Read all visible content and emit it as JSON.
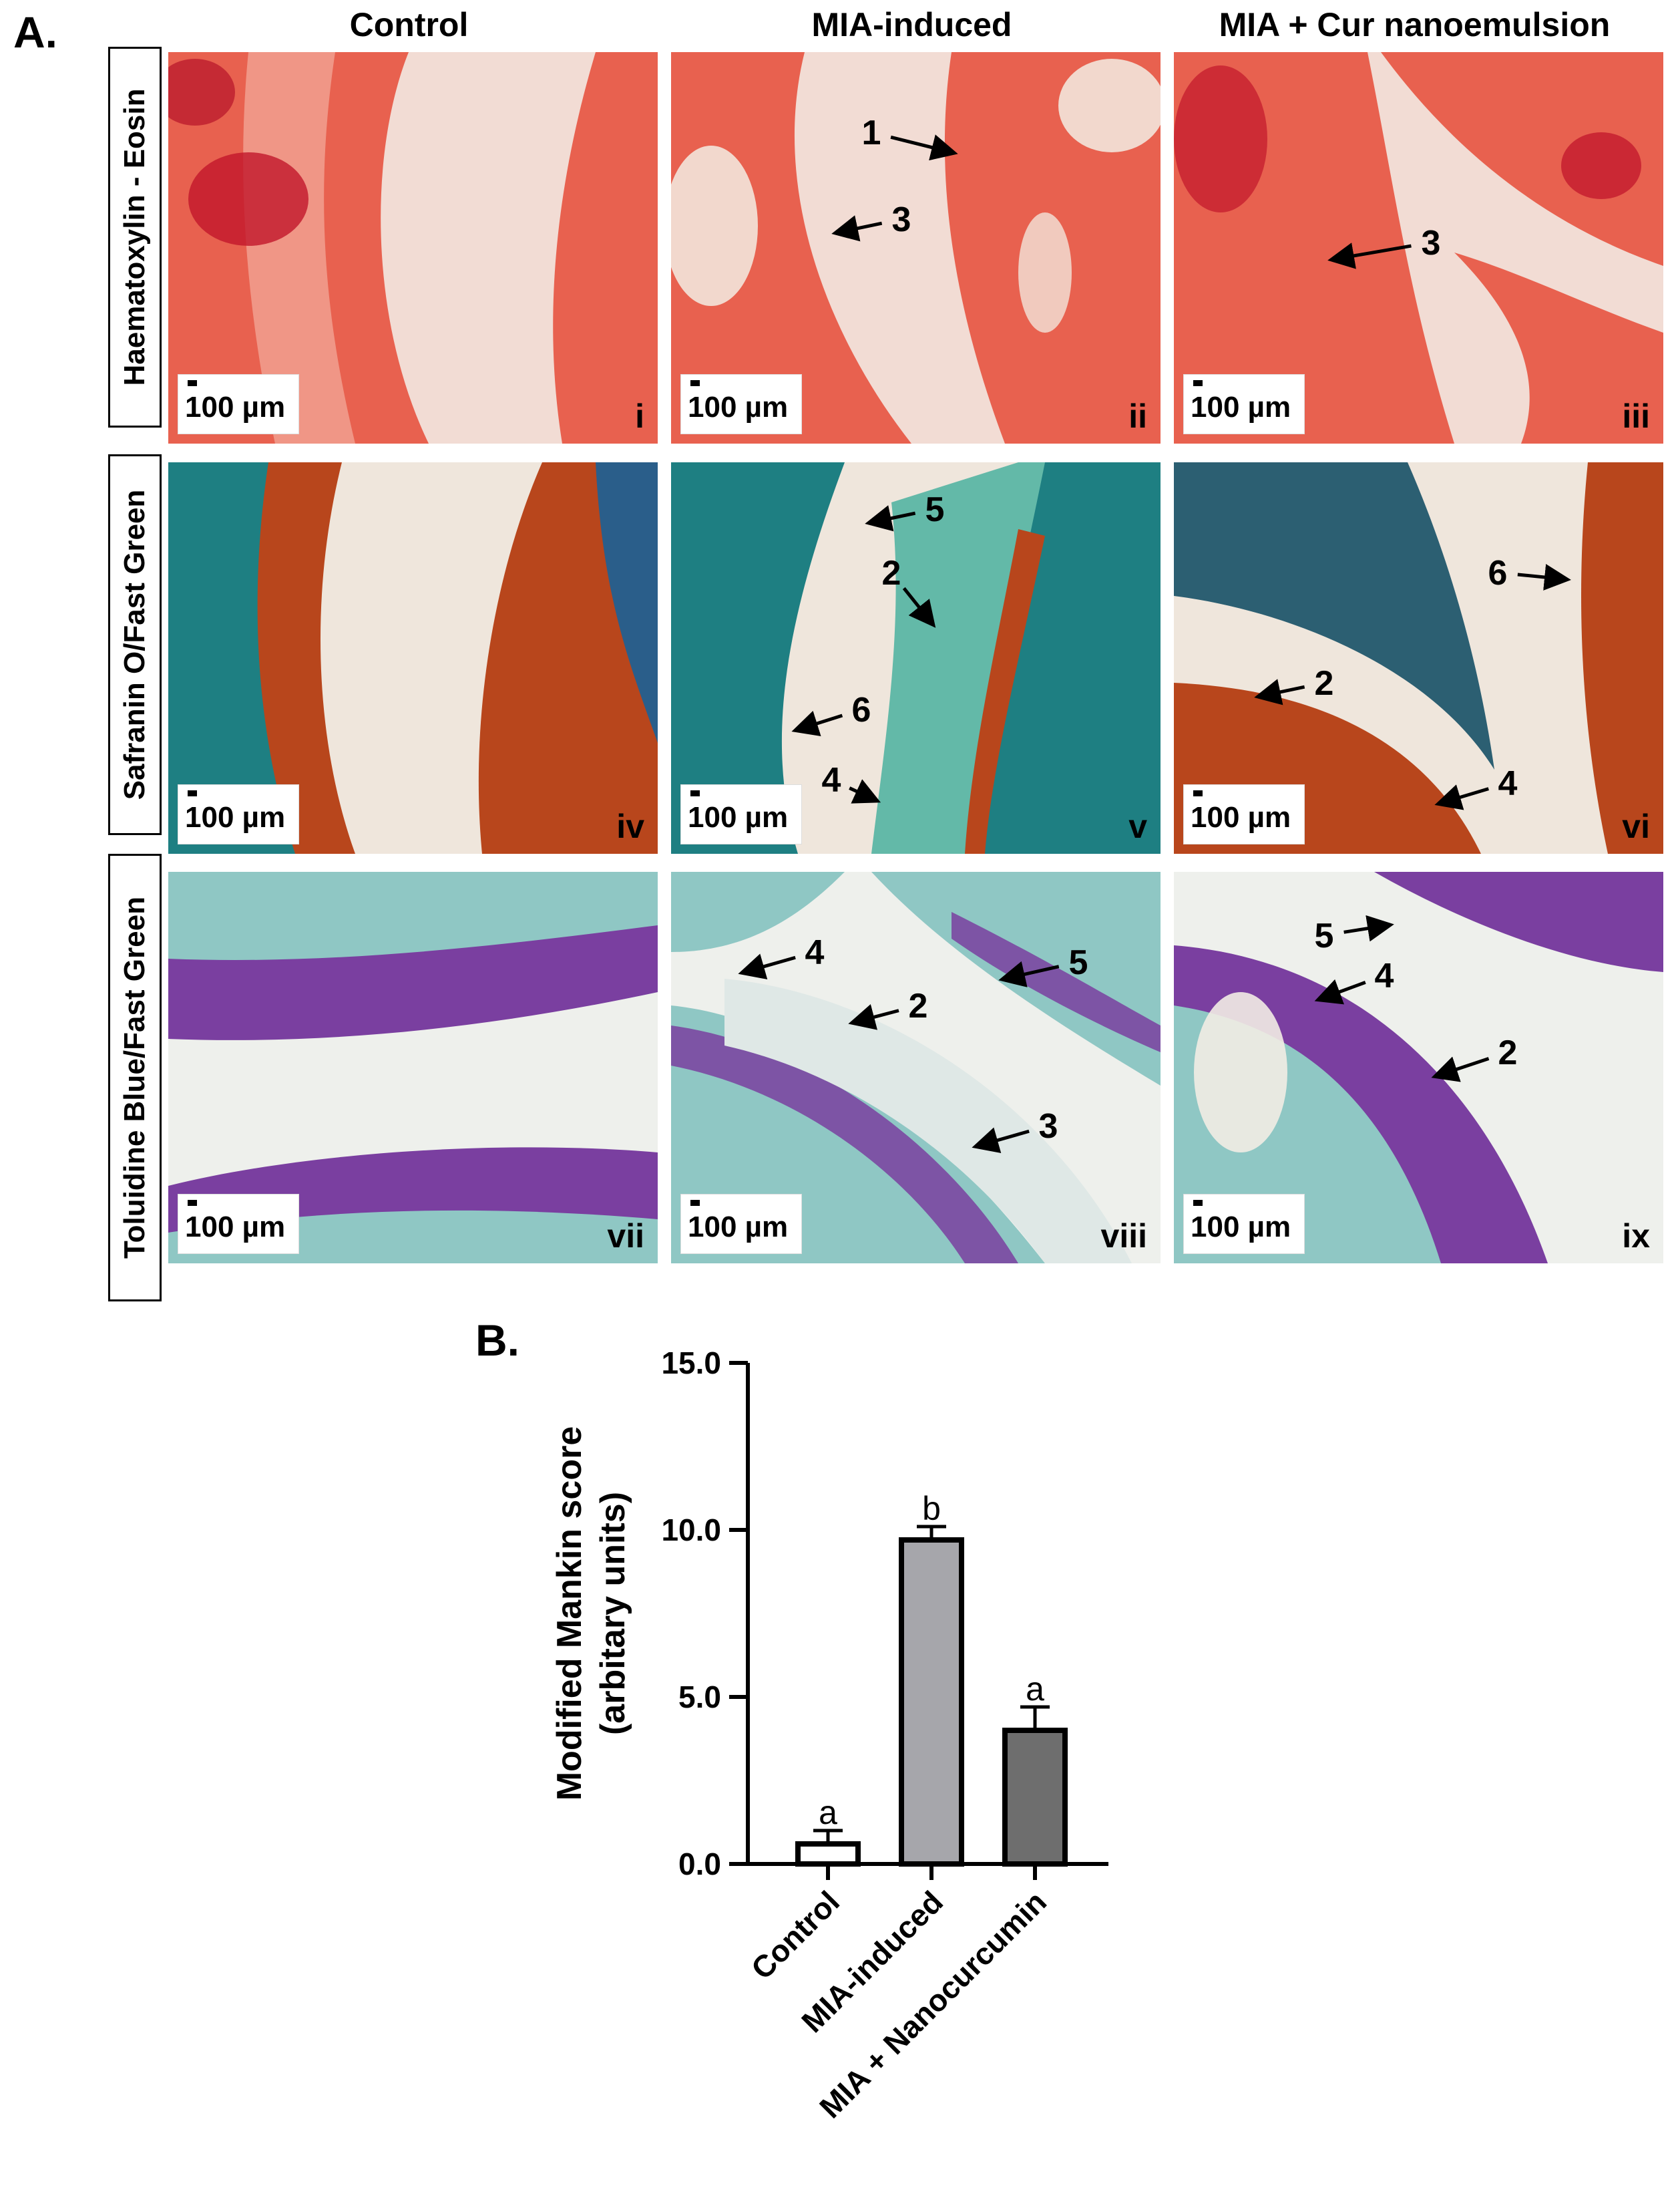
{
  "panel_a": {
    "letter": "A.",
    "columns": [
      "Control",
      "MIA-induced",
      "MIA + Cur nanoemulsion"
    ],
    "rows": [
      "Haematoxylin - Eosin",
      "Safranin O/Fast Green",
      "Toluidine Blue/Fast Green"
    ],
    "scale_label": "100 µm",
    "tiles": [
      {
        "id": "i",
        "stain": "he",
        "annotations": []
      },
      {
        "id": "ii",
        "stain": "he",
        "annotations": [
          "1",
          "3"
        ]
      },
      {
        "id": "iii",
        "stain": "he",
        "annotations": [
          "3"
        ]
      },
      {
        "id": "iv",
        "stain": "saf",
        "annotations": []
      },
      {
        "id": "v",
        "stain": "saf",
        "annotations": [
          "5",
          "2",
          "6",
          "4"
        ]
      },
      {
        "id": "vi",
        "stain": "saf",
        "annotations": [
          "6",
          "2",
          "4"
        ]
      },
      {
        "id": "vii",
        "stain": "tb",
        "annotations": []
      },
      {
        "id": "viii",
        "stain": "tb",
        "annotations": [
          "4",
          "5",
          "2",
          "3"
        ]
      },
      {
        "id": "ix",
        "stain": "tb",
        "annotations": [
          "5",
          "4",
          "2"
        ]
      }
    ],
    "stain_colors": {
      "he": {
        "bg": "#f2dcd4",
        "tissue": "#e8614f",
        "light": "#f6c3b5"
      },
      "saf": {
        "bg": "#efe6dc",
        "tissue": "#1e7f82",
        "accent": "#b8461c"
      },
      "tb": {
        "bg": "#eef0ec",
        "tissue": "#8fc7c4",
        "accent": "#7a3fa0"
      }
    }
  },
  "panel_b": {
    "letter": "B."
  },
  "chart_data": {
    "type": "bar",
    "categories": [
      "Control",
      "MIA-induced",
      "MIA + Nanocurcumin"
    ],
    "values": [
      0.6,
      9.7,
      4.0
    ],
    "errors": [
      0.4,
      0.4,
      0.7
    ],
    "significance": [
      "a",
      "b",
      "a"
    ],
    "bar_colors": [
      "#ffffff",
      "#a6a6ab",
      "#6e6e6e"
    ],
    "ylabel_line1": "Modified Mankin score",
    "ylabel_line2": "(arbitary units)",
    "yticks": [
      "0.0",
      "5.0",
      "10.0",
      "15.0"
    ],
    "ylim": [
      0,
      15
    ]
  }
}
